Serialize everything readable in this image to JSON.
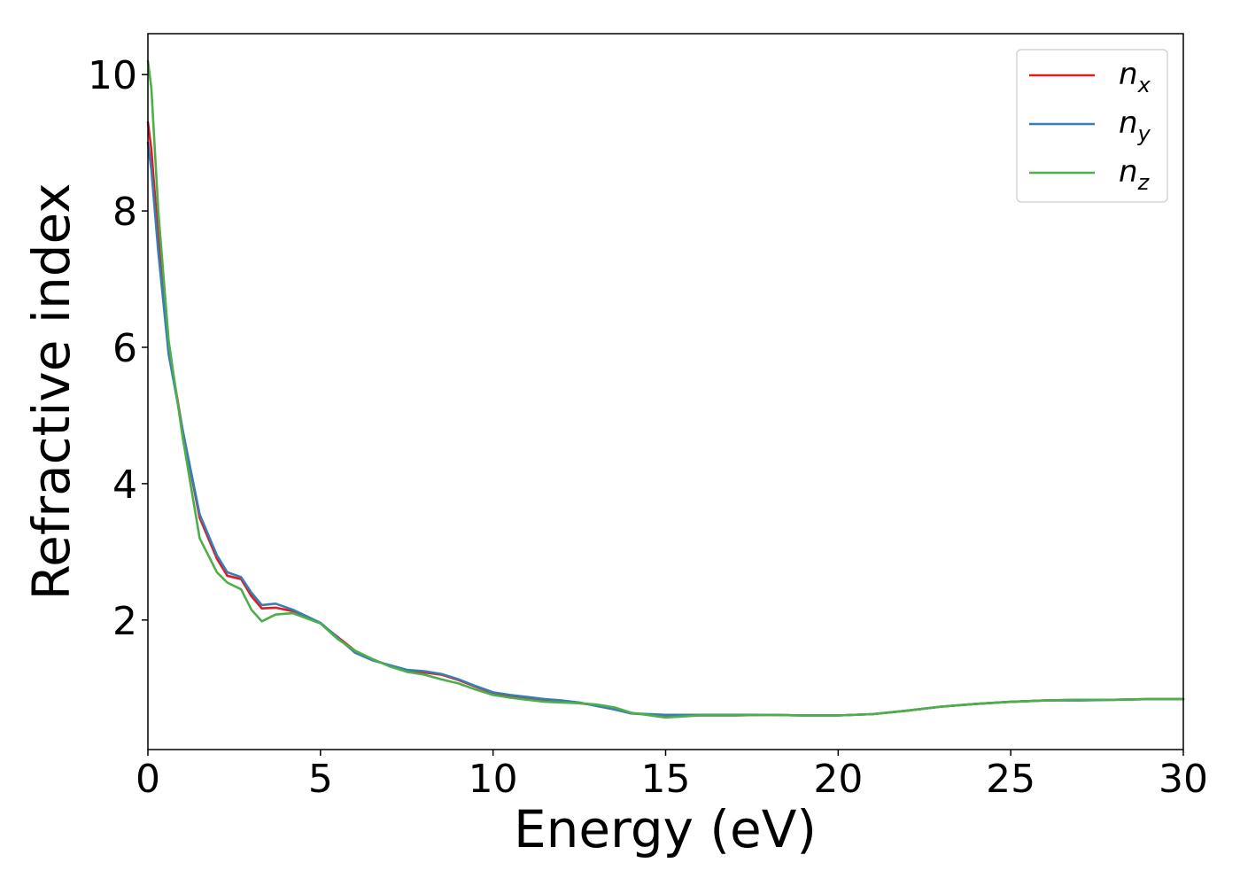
{
  "chart_data": {
    "type": "line",
    "title": "",
    "xlabel": "Energy (eV)",
    "ylabel": "Refractive index",
    "xlim": [
      0,
      30
    ],
    "ylim": [
      0.1,
      10.6
    ],
    "xticks": [
      0,
      5,
      10,
      15,
      20,
      25,
      30
    ],
    "xtick_labels": [
      "0",
      "5",
      "10",
      "15",
      "20",
      "25",
      "30"
    ],
    "yticks": [
      2,
      4,
      6,
      8,
      10
    ],
    "ytick_labels": [
      "2",
      "4",
      "6",
      "8",
      "10"
    ],
    "grid": false,
    "legend_position": "top-right",
    "series": [
      {
        "name": "n_x",
        "label_base": "n",
        "label_sub": "x",
        "color": "#e41a1c",
        "x": [
          0,
          0.1,
          0.3,
          0.6,
          1.0,
          1.5,
          2.0,
          2.3,
          2.7,
          3.0,
          3.3,
          3.7,
          4.2,
          5.0,
          5.5,
          6.0,
          6.5,
          7.0,
          7.5,
          8.0,
          8.5,
          9.0,
          9.5,
          10.0,
          10.5,
          11.0,
          11.5,
          12.0,
          12.5,
          13.0,
          13.5,
          14.0,
          15.0,
          16.0,
          17.0,
          18.0,
          19.0,
          20.0,
          21.0,
          22.0,
          23.0,
          24.0,
          25.0,
          26.0,
          27.0,
          28.0,
          29.0,
          30.0
        ],
        "y": [
          9.3,
          8.9,
          7.6,
          6.0,
          4.8,
          3.5,
          2.9,
          2.65,
          2.6,
          2.35,
          2.17,
          2.18,
          2.13,
          1.95,
          1.75,
          1.55,
          1.42,
          1.33,
          1.26,
          1.23,
          1.2,
          1.12,
          1.02,
          0.93,
          0.88,
          0.85,
          0.82,
          0.8,
          0.78,
          0.75,
          0.7,
          0.63,
          0.6,
          0.6,
          0.6,
          0.61,
          0.6,
          0.6,
          0.62,
          0.67,
          0.73,
          0.77,
          0.8,
          0.82,
          0.83,
          0.83,
          0.84,
          0.84
        ]
      },
      {
        "name": "n_y",
        "label_base": "n",
        "label_sub": "y",
        "color": "#377eb8",
        "x": [
          0,
          0.1,
          0.3,
          0.6,
          1.0,
          1.5,
          2.0,
          2.3,
          2.7,
          3.0,
          3.3,
          3.7,
          4.2,
          5.0,
          5.5,
          6.0,
          6.5,
          7.0,
          7.5,
          8.0,
          8.5,
          9.0,
          9.5,
          10.0,
          10.5,
          11.0,
          11.5,
          12.0,
          12.5,
          13.0,
          13.5,
          14.0,
          15.0,
          16.0,
          17.0,
          18.0,
          19.0,
          20.0,
          21.0,
          22.0,
          23.0,
          24.0,
          25.0,
          26.0,
          27.0,
          28.0,
          29.0,
          30.0
        ],
        "y": [
          9.0,
          8.6,
          7.4,
          5.9,
          4.8,
          3.55,
          2.95,
          2.7,
          2.63,
          2.4,
          2.22,
          2.24,
          2.15,
          1.96,
          1.74,
          1.52,
          1.41,
          1.34,
          1.27,
          1.25,
          1.21,
          1.13,
          1.03,
          0.94,
          0.9,
          0.87,
          0.84,
          0.82,
          0.79,
          0.74,
          0.69,
          0.63,
          0.61,
          0.61,
          0.61,
          0.61,
          0.6,
          0.6,
          0.62,
          0.67,
          0.73,
          0.77,
          0.8,
          0.82,
          0.82,
          0.83,
          0.84,
          0.84
        ]
      },
      {
        "name": "n_z",
        "label_base": "n",
        "label_sub": "z",
        "color": "#4daf4a",
        "x": [
          0,
          0.1,
          0.3,
          0.6,
          1.0,
          1.5,
          2.0,
          2.3,
          2.7,
          3.0,
          3.3,
          3.7,
          4.2,
          5.0,
          5.5,
          6.0,
          6.5,
          7.0,
          7.5,
          8.0,
          8.5,
          9.0,
          9.5,
          10.0,
          10.5,
          11.0,
          11.5,
          12.0,
          12.5,
          13.0,
          13.5,
          14.0,
          15.0,
          16.0,
          17.0,
          18.0,
          19.0,
          20.0,
          21.0,
          22.0,
          23.0,
          24.0,
          25.0,
          26.0,
          27.0,
          28.0,
          29.0,
          30.0
        ],
        "y": [
          10.2,
          9.8,
          8.0,
          6.1,
          4.7,
          3.2,
          2.7,
          2.55,
          2.45,
          2.15,
          1.98,
          2.08,
          2.1,
          1.95,
          1.72,
          1.55,
          1.43,
          1.32,
          1.24,
          1.2,
          1.13,
          1.07,
          0.98,
          0.9,
          0.86,
          0.83,
          0.8,
          0.79,
          0.78,
          0.76,
          0.72,
          0.64,
          0.57,
          0.6,
          0.6,
          0.61,
          0.6,
          0.6,
          0.62,
          0.67,
          0.73,
          0.77,
          0.8,
          0.82,
          0.83,
          0.83,
          0.84,
          0.84
        ]
      }
    ]
  }
}
